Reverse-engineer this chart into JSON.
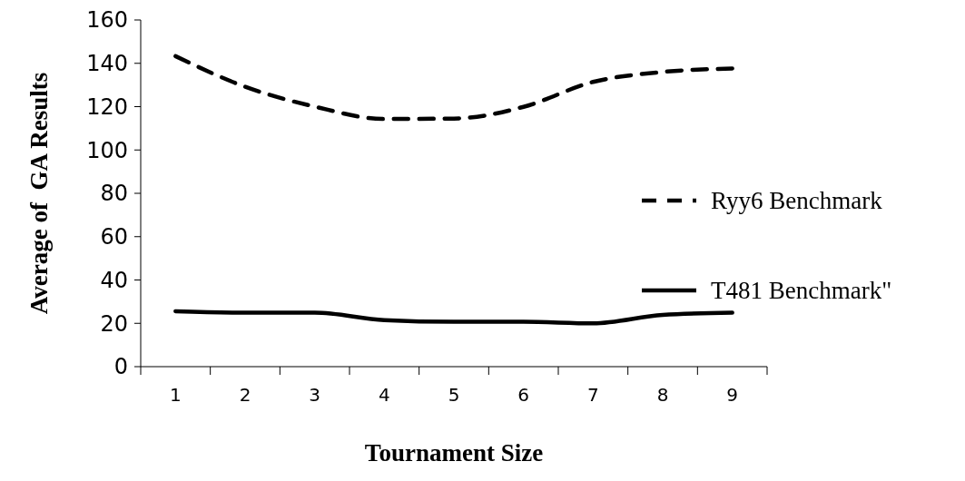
{
  "chart_data": {
    "type": "line",
    "xlabel": "Tournament Size",
    "ylabel": "Average of  GA Results",
    "categories": [
      "1",
      "2",
      "3",
      "4",
      "5",
      "6",
      "7",
      "8",
      "9"
    ],
    "series": [
      {
        "name": "Ryy6 Benchmark",
        "color": "#000000",
        "line_style": "dashed",
        "values": [
          143.3,
          129.2,
          120,
          114.3,
          114.5,
          119.9,
          131.4,
          136,
          137.6
        ]
      },
      {
        "name": "T481 Benchmark\"",
        "color": "#000000",
        "line_style": "solid",
        "values": [
          25.6,
          24.9,
          24.9,
          21.5,
          20.7,
          20.7,
          20,
          23.9,
          24.9
        ]
      }
    ],
    "ylim": [
      0,
      160
    ],
    "yticks": [
      0,
      20,
      40,
      60,
      80,
      100,
      120,
      140,
      160
    ],
    "grid": false,
    "legend": "right",
    "marker": "none"
  }
}
